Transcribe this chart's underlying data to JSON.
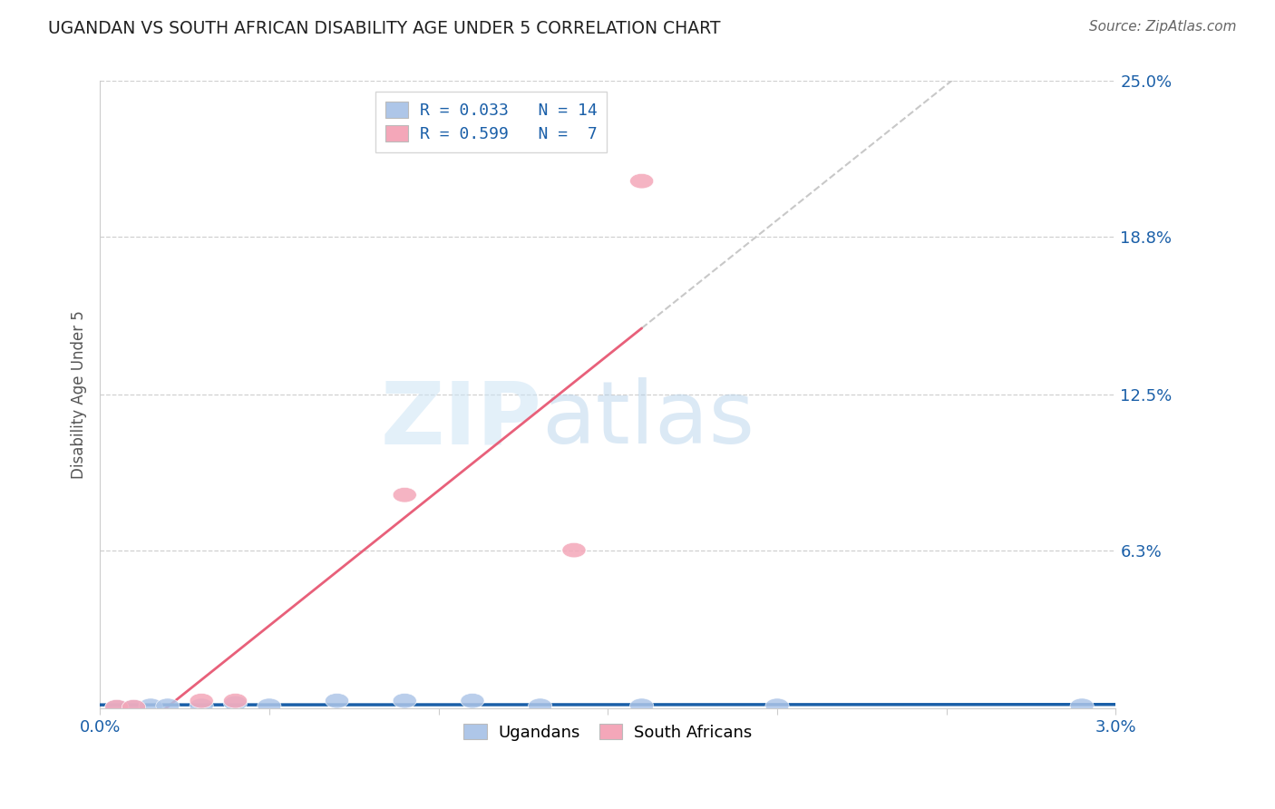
{
  "title": "UGANDAN VS SOUTH AFRICAN DISABILITY AGE UNDER 5 CORRELATION CHART",
  "source": "Source: ZipAtlas.com",
  "ylabel": "Disability Age Under 5",
  "xlim": [
    0.0,
    0.03
  ],
  "ylim": [
    0.0,
    0.25
  ],
  "ytick_labels": [
    "25.0%",
    "18.8%",
    "12.5%",
    "6.3%"
  ],
  "ytick_values": [
    0.25,
    0.188,
    0.125,
    0.063
  ],
  "legend_entry1": "R = 0.033   N = 14",
  "legend_entry2": "R = 0.599   N =  7",
  "ugandan_x": [
    0.0005,
    0.001,
    0.0015,
    0.002,
    0.003,
    0.004,
    0.005,
    0.007,
    0.009,
    0.011,
    0.013,
    0.016,
    0.02,
    0.029
  ],
  "ugandan_y": [
    0.0005,
    0.0005,
    0.001,
    0.001,
    0.001,
    0.002,
    0.001,
    0.003,
    0.003,
    0.003,
    0.001,
    0.001,
    0.001,
    0.001
  ],
  "south_african_x": [
    0.0005,
    0.001,
    0.003,
    0.004,
    0.009,
    0.014,
    0.016
  ],
  "south_african_y": [
    0.0005,
    0.0005,
    0.003,
    0.003,
    0.085,
    0.063,
    0.21
  ],
  "ugandan_color": "#aec6e8",
  "south_african_color": "#f4a7b9",
  "ugandan_line_color": "#1a5fa8",
  "south_african_line_color": "#e8607a",
  "dashed_line_color": "#c8c8c8",
  "background_color": "#ffffff",
  "grid_color": "#d0d0d0"
}
